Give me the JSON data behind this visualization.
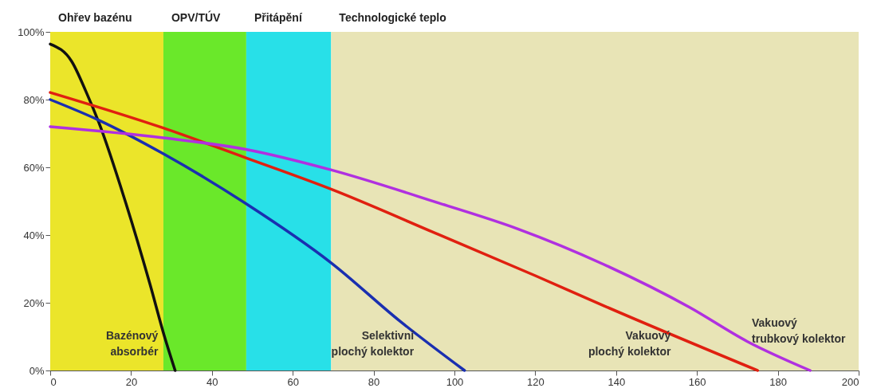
{
  "chart_data": {
    "type": "line",
    "xlim": [
      0,
      200
    ],
    "xticks": [
      0,
      20,
      40,
      60,
      80,
      100,
      120,
      140,
      160,
      180,
      200
    ],
    "ylim": [
      0,
      100
    ],
    "yticks": [
      {
        "value": 0,
        "label": "0%"
      },
      {
        "value": 20,
        "label": "20%"
      },
      {
        "value": 40,
        "label": "40%"
      },
      {
        "value": 60,
        "label": "60%"
      },
      {
        "value": 80,
        "label": "80%"
      },
      {
        "value": 100,
        "label": "100%"
      }
    ],
    "bands": [
      {
        "axis": "x",
        "from": 0,
        "to": 28,
        "label": "Ohřev bazénu",
        "color": "#ebe52a"
      },
      {
        "axis": "x",
        "from": 28,
        "to": 48.5,
        "label": "OPV/TÚV",
        "color": "#6ae82a"
      },
      {
        "axis": "x",
        "from": 48.5,
        "to": 69.5,
        "label": "Přitápění",
        "color": "#28e0e8"
      },
      {
        "axis": "x",
        "from": 69.5,
        "to": 200,
        "label": "Technologické teplo",
        "color": "#e8e4b6"
      }
    ],
    "series": [
      {
        "name": "Bazénový absorbér",
        "color": "#111111",
        "x": [
          0,
          5.3,
          8.8,
          12,
          18.4,
          24.7,
          28.2,
          30.9
        ],
        "values": [
          96.4,
          91.3,
          82.5,
          73.3,
          50.6,
          25.4,
          10.3,
          0
        ]
      },
      {
        "name": "Selektivní plochý kolektor",
        "color": "#1a2fb0",
        "x": [
          0,
          11.7,
          28,
          48.4,
          69.6,
          86.6,
          102.5
        ],
        "values": [
          80,
          74.1,
          64,
          49.3,
          31.7,
          14.5,
          0
        ]
      },
      {
        "name": "Vakuový plochý kolektor",
        "color": "#e02010",
        "x": [
          0,
          28,
          48.4,
          69.6,
          96,
          120,
          137,
          175
        ],
        "values": [
          82.1,
          71.6,
          62.8,
          53.5,
          40.2,
          28,
          19.1,
          0
        ]
      },
      {
        "name": "Vakuový trubkový kolektor",
        "color": "#b030e0",
        "x": [
          0,
          28,
          48.4,
          69.6,
          96,
          115.7,
          137,
          158.1,
          172.4,
          188
        ],
        "values": [
          72,
          68.7,
          65.3,
          59.2,
          49.5,
          41.8,
          31.3,
          18.7,
          8.6,
          0
        ]
      }
    ]
  }
}
